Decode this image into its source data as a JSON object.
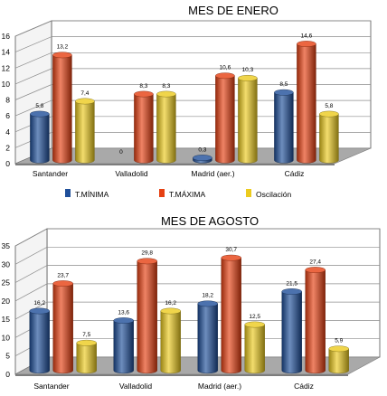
{
  "colors": {
    "minima": "#1f4f9a",
    "maxima": "#e64012",
    "oscilacion": "#eccb1e",
    "floor": "#a9a9a9",
    "wall": "#ffffff",
    "grid": "#8c8c8c"
  },
  "chart_data": [
    {
      "type": "bar",
      "title": "MES DE ENERO",
      "categories": [
        "Santander",
        "Valladolid",
        "Madrid (aer.)",
        "Cádiz"
      ],
      "ylim": [
        0,
        16
      ],
      "yticks": [
        0,
        2,
        4,
        6,
        8,
        10,
        12,
        14,
        16
      ],
      "grid": true,
      "legend": "bottom",
      "series": [
        {
          "name": "T.MÍNIMA",
          "values": [
            5.8,
            0,
            0.3,
            8.5
          ],
          "labels": [
            "5,8",
            "0",
            "0,3",
            "8,5"
          ]
        },
        {
          "name": "T.MÁXIMA",
          "values": [
            13.2,
            8.3,
            10.6,
            14.6
          ],
          "labels": [
            "13,2",
            "8,3",
            "10,6",
            "14,6"
          ]
        },
        {
          "name": "Oscilación",
          "values": [
            7.4,
            8.3,
            10.3,
            5.8
          ],
          "labels": [
            "7,4",
            "8,3",
            "10,3",
            "5,8"
          ]
        }
      ]
    },
    {
      "type": "bar",
      "title": "MES DE AGOSTO",
      "categories": [
        "Santander",
        "Valladolid",
        "Madrid (aer.)",
        "Cádiz"
      ],
      "ylim": [
        0,
        35
      ],
      "yticks": [
        0,
        5,
        10,
        15,
        20,
        25,
        30,
        35
      ],
      "grid": true,
      "series": [
        {
          "name": "T.MÍNIMA",
          "values": [
            16.2,
            13.6,
            18.2,
            21.5
          ],
          "labels": [
            "16,2",
            "13,6",
            "18,2",
            "21,5"
          ]
        },
        {
          "name": "T.MÁXIMA",
          "values": [
            23.7,
            29.8,
            30.7,
            27.4
          ],
          "labels": [
            "23,7",
            "29,8",
            "30,7",
            "27,4"
          ]
        },
        {
          "name": "Oscilación",
          "values": [
            7.5,
            16.2,
            12.5,
            5.9
          ],
          "labels": [
            "7,5",
            "16,2",
            "12,5",
            "5,9"
          ]
        }
      ]
    }
  ]
}
